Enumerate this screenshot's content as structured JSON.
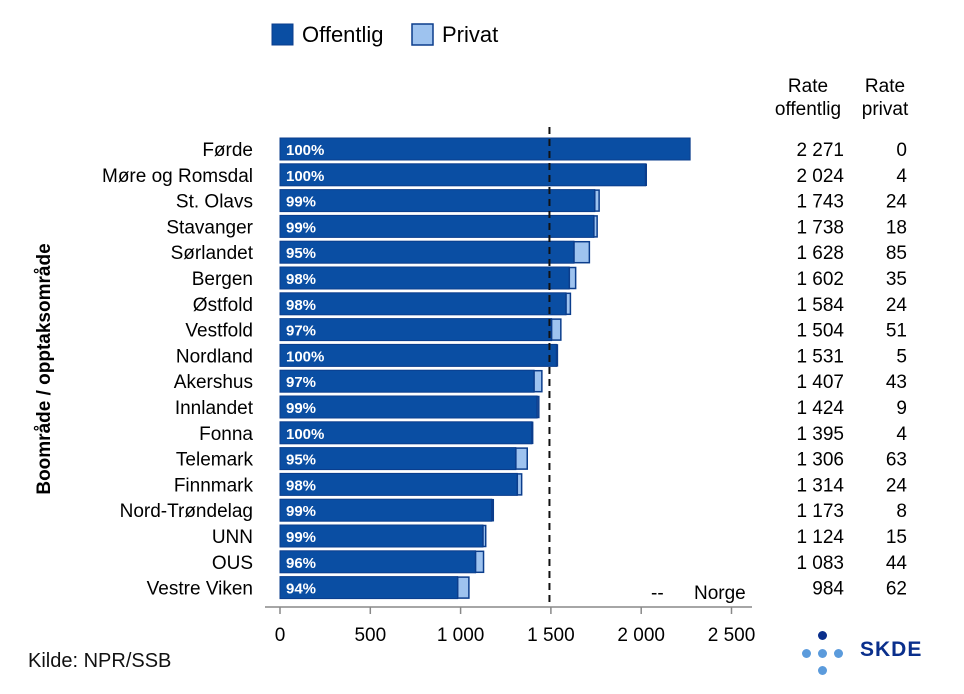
{
  "chart_data": {
    "type": "bar",
    "stacked": true,
    "orientation": "horizontal",
    "ylabel": "Boområde / opptaksområde",
    "xlabel": "",
    "xlim": [
      0,
      2550
    ],
    "xticks": [
      0,
      500,
      1000,
      1500,
      2000,
      2500
    ],
    "xtick_labels": [
      "0",
      "500",
      "1 000",
      "1 500",
      "2 000",
      "2 500"
    ],
    "categories": [
      "Førde",
      "Møre og Romsdal",
      "St. Olavs",
      "Stavanger",
      "Sørlandet",
      "Bergen",
      "Østfold",
      "Vestfold",
      "Nordland",
      "Akershus",
      "Innlandet",
      "Fonna",
      "Telemark",
      "Finnmark",
      "Nord-Trøndelag",
      "UNN",
      "OUS",
      "Vestre Viken"
    ],
    "series": [
      {
        "name": "Offentlig",
        "color": "#0a4ea3",
        "values": [
          2271,
          2024,
          1743,
          1738,
          1628,
          1602,
          1584,
          1504,
          1531,
          1407,
          1424,
          1395,
          1306,
          1314,
          1173,
          1124,
          1083,
          984
        ]
      },
      {
        "name": "Privat",
        "color": "#9ec3ef",
        "values": [
          0,
          4,
          24,
          18,
          85,
          35,
          24,
          51,
          5,
          43,
          9,
          4,
          63,
          24,
          8,
          15,
          44,
          62
        ]
      }
    ],
    "share_labels": [
      "100%",
      "100%",
      "99%",
      "99%",
      "95%",
      "98%",
      "98%",
      "97%",
      "100%",
      "97%",
      "99%",
      "100%",
      "95%",
      "98%",
      "99%",
      "99%",
      "96%",
      "94%"
    ],
    "rate_offentlig": [
      "2 271",
      "2 024",
      "1 743",
      "1 738",
      "1 628",
      "1 602",
      "1 584",
      "1 504",
      "1 531",
      "1 407",
      "1 424",
      "1 395",
      "1 306",
      "1 314",
      "1 173",
      "1 124",
      "1 083",
      "984"
    ],
    "rate_privat": [
      "0",
      "4",
      "24",
      "18",
      "85",
      "35",
      "24",
      "51",
      "5",
      "43",
      "9",
      "4",
      "63",
      "24",
      "8",
      "15",
      "44",
      "62"
    ],
    "reference_line": {
      "label": "Norge",
      "value": 1492,
      "style": "dashed",
      "legend_symbol": "--"
    },
    "headers": {
      "offentlig": [
        "Rate",
        "offentlig"
      ],
      "privat": [
        "Rate",
        "privat"
      ]
    },
    "legend": [
      "Offentlig",
      "Privat"
    ],
    "legend_position": "top-left",
    "grid": false
  },
  "source": "Kilde: NPR/SSB",
  "logo_text": "SKDE",
  "colors": {
    "offentlig": "#0a4ea3",
    "offentlig_border": "#0b3d8c",
    "privat": "#9ec3ef",
    "logo": "#0a2f8c",
    "logo_dot_light": "#5b9bdc"
  }
}
